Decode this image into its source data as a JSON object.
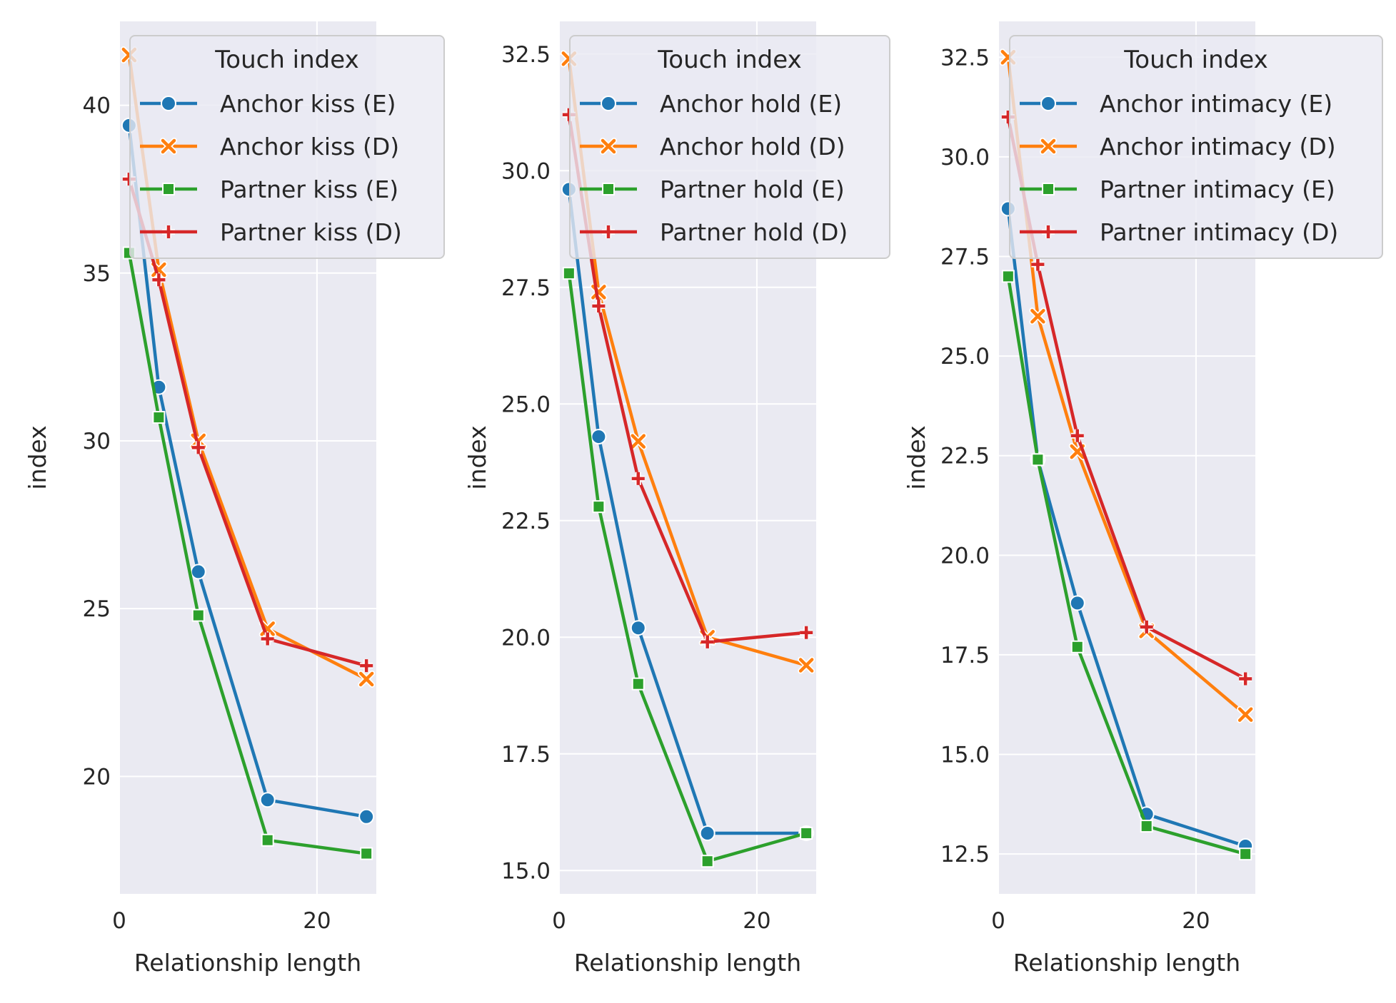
{
  "chart_data": [
    {
      "type": "line",
      "xlabel": "Relationship length",
      "ylabel": "index",
      "xlim": [
        0,
        26
      ],
      "ylim": [
        16.5,
        42.5
      ],
      "xticks": [
        0,
        20
      ],
      "yticks": [
        20,
        25,
        30,
        35,
        40
      ],
      "ytick_labels": [
        "20",
        "25",
        "30",
        "35",
        "40"
      ],
      "grid": true,
      "legend_position": "top-right",
      "legend_title": "Touch index",
      "series": [
        {
          "name": "Anchor kiss (E)",
          "color": "#1f77b4",
          "marker": "circle",
          "x": [
            1,
            4,
            8,
            15,
            25
          ],
          "y": [
            39.4,
            31.6,
            26.1,
            19.3,
            18.8
          ]
        },
        {
          "name": "Anchor kiss (D)",
          "color": "#ff7f0e",
          "marker": "x",
          "x": [
            1,
            4,
            8,
            15,
            25
          ],
          "y": [
            41.5,
            35.1,
            30.0,
            24.4,
            22.9
          ]
        },
        {
          "name": "Partner kiss (E)",
          "color": "#2ca02c",
          "marker": "square",
          "x": [
            1,
            4,
            8,
            15,
            25
          ],
          "y": [
            35.6,
            30.7,
            24.8,
            18.1,
            17.7
          ]
        },
        {
          "name": "Partner kiss (D)",
          "color": "#d62728",
          "marker": "plus",
          "x": [
            1,
            4,
            8,
            15,
            25
          ],
          "y": [
            37.8,
            34.8,
            29.8,
            24.1,
            23.3
          ]
        }
      ]
    },
    {
      "type": "line",
      "xlabel": "Relationship length",
      "ylabel": "index",
      "xlim": [
        0,
        26
      ],
      "ylim": [
        14.5,
        33.2
      ],
      "xticks": [
        0,
        20
      ],
      "yticks": [
        15.0,
        17.5,
        20.0,
        22.5,
        25.0,
        27.5,
        30.0,
        32.5
      ],
      "ytick_labels": [
        "15.0",
        "17.5",
        "20.0",
        "22.5",
        "25.0",
        "27.5",
        "30.0",
        "32.5"
      ],
      "grid": true,
      "legend_position": "top-right",
      "legend_title": "Touch index",
      "series": [
        {
          "name": "Anchor hold (E)",
          "color": "#1f77b4",
          "marker": "circle",
          "x": [
            1,
            4,
            8,
            15,
            25
          ],
          "y": [
            29.6,
            24.3,
            20.2,
            15.8,
            15.8
          ]
        },
        {
          "name": "Anchor hold (D)",
          "color": "#ff7f0e",
          "marker": "x",
          "x": [
            1,
            4,
            8,
            15,
            25
          ],
          "y": [
            32.4,
            27.4,
            24.2,
            20.0,
            19.4
          ]
        },
        {
          "name": "Partner hold (E)",
          "color": "#2ca02c",
          "marker": "square",
          "x": [
            1,
            4,
            8,
            15,
            25
          ],
          "y": [
            27.8,
            22.8,
            19.0,
            15.2,
            15.8
          ]
        },
        {
          "name": "Partner hold (D)",
          "color": "#d62728",
          "marker": "plus",
          "x": [
            1,
            4,
            8,
            15,
            25
          ],
          "y": [
            31.2,
            27.1,
            23.4,
            19.9,
            20.1
          ]
        }
      ]
    },
    {
      "type": "line",
      "xlabel": "Relationship length",
      "ylabel": "index",
      "xlim": [
        0,
        26
      ],
      "ylim": [
        11.5,
        33.4
      ],
      "xticks": [
        0,
        20
      ],
      "yticks": [
        12.5,
        15.0,
        17.5,
        20.0,
        22.5,
        25.0,
        27.5,
        30.0,
        32.5
      ],
      "ytick_labels": [
        "12.5",
        "15.0",
        "17.5",
        "20.0",
        "22.5",
        "25.0",
        "27.5",
        "30.0",
        "32.5"
      ],
      "grid": true,
      "legend_position": "top-right",
      "legend_title": "Touch index",
      "series": [
        {
          "name": "Anchor intimacy (E)",
          "color": "#1f77b4",
          "marker": "circle",
          "x": [
            1,
            4,
            8,
            15,
            25
          ],
          "y": [
            28.7,
            22.4,
            18.8,
            13.5,
            12.7
          ]
        },
        {
          "name": "Anchor intimacy (D)",
          "color": "#ff7f0e",
          "marker": "x",
          "x": [
            1,
            4,
            8,
            15,
            25
          ],
          "y": [
            32.5,
            26.0,
            22.6,
            18.1,
            16.0
          ]
        },
        {
          "name": "Partner intimacy (E)",
          "color": "#2ca02c",
          "marker": "square",
          "x": [
            1,
            4,
            8,
            15,
            25
          ],
          "y": [
            27.0,
            22.4,
            17.7,
            13.2,
            12.5
          ]
        },
        {
          "name": "Partner intimacy (D)",
          "color": "#d62728",
          "marker": "plus",
          "x": [
            1,
            4,
            8,
            15,
            25
          ],
          "y": [
            31.0,
            27.3,
            23.0,
            18.2,
            16.9
          ]
        }
      ]
    }
  ],
  "theme": {
    "axes_bg": "#eaeaf2",
    "grid_color": "#ffffff",
    "legend_bg": "#eaeaf2",
    "legend_border": "#cccccc",
    "text_color": "#262626"
  }
}
